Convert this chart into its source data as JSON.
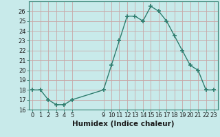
{
  "x": [
    0,
    1,
    2,
    3,
    4,
    5,
    9,
    10,
    11,
    12,
    13,
    14,
    15,
    16,
    17,
    18,
    19,
    20,
    21,
    22,
    23
  ],
  "y": [
    18,
    18,
    17,
    16.5,
    16.5,
    17,
    18,
    20.5,
    23,
    25.5,
    25.5,
    25,
    26.5,
    26,
    25,
    23.5,
    22,
    20.5,
    20,
    18,
    18
  ],
  "line_color": "#2e7d6e",
  "marker": "+",
  "marker_size": 4,
  "marker_lw": 1.2,
  "bg_color": "#c8eaea",
  "grid_color": "#c8a8a8",
  "xlabel": "Humidex (Indice chaleur)",
  "xlabel_fontsize": 7.5,
  "ylim": [
    16,
    27
  ],
  "xlim": [
    -0.5,
    23.5
  ],
  "yticks": [
    16,
    17,
    18,
    19,
    20,
    21,
    22,
    23,
    24,
    25,
    26
  ],
  "xticks": [
    0,
    1,
    2,
    3,
    4,
    5,
    9,
    10,
    11,
    12,
    13,
    14,
    15,
    16,
    17,
    18,
    19,
    20,
    21,
    22,
    23
  ],
  "tick_fontsize": 6,
  "line_width": 1.0
}
